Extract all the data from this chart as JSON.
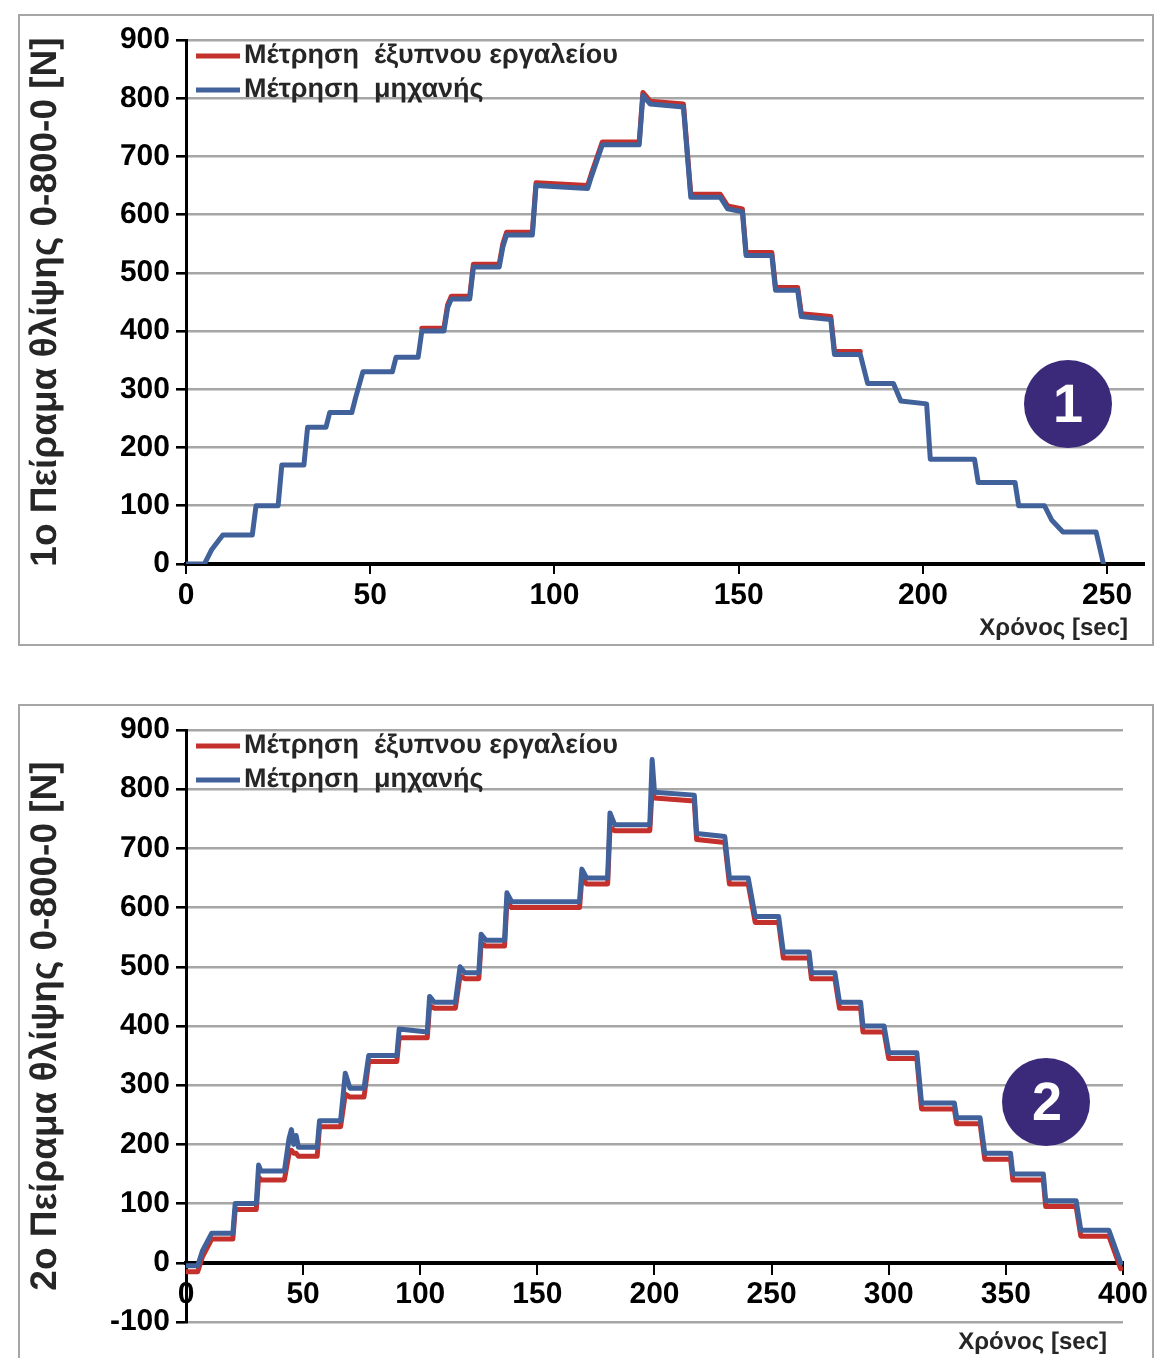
{
  "chart_data": [
    {
      "type": "line",
      "ylabel": "1ο Πείραμα θλίψης 0-800-0 [N]",
      "xlabel": "Χρόνος [sec]",
      "annotations": [
        "1"
      ],
      "xlim": [
        0,
        260
      ],
      "xticks": [
        0,
        50,
        100,
        150,
        200,
        250
      ],
      "ylim": [
        0,
        900
      ],
      "yticks": [
        0,
        100,
        200,
        300,
        400,
        500,
        600,
        700,
        800,
        900
      ],
      "grid": "y",
      "legend": "top left",
      "marker": "none",
      "line_style": "solid",
      "series": [
        {
          "name": "Μέτρηση  έξυπνου εργαλείου",
          "color": "#c4302b",
          "x": [
            64,
            70,
            71,
            72,
            77,
            78,
            85,
            86,
            87,
            94,
            95,
            109,
            110,
            113,
            123,
            124,
            126,
            135,
            137,
            145,
            147,
            151,
            152,
            159,
            160,
            166,
            167,
            175,
            176,
            183
          ],
          "values": [
            405,
            405,
            445,
            460,
            460,
            515,
            515,
            550,
            570,
            570,
            655,
            650,
            670,
            725,
            725,
            810,
            795,
            790,
            635,
            635,
            615,
            610,
            535,
            535,
            475,
            475,
            430,
            425,
            365,
            365
          ]
        },
        {
          "name": "Μέτρηση  μηχανής",
          "color": "#41619b",
          "x": [
            0,
            5,
            7,
            10,
            18,
            19,
            25,
            26,
            32,
            33,
            38,
            39,
            45,
            46,
            48,
            56,
            57,
            63,
            64,
            70,
            71,
            72,
            77,
            78,
            85,
            86,
            87,
            94,
            95,
            109,
            110,
            113,
            123,
            124,
            126,
            135,
            137,
            145,
            147,
            151,
            152,
            159,
            160,
            166,
            167,
            175,
            176,
            183,
            185,
            192,
            194,
            201,
            202,
            214,
            215,
            225,
            226,
            233,
            235,
            238,
            247,
            249
          ],
          "values": [
            0,
            0,
            25,
            50,
            50,
            100,
            100,
            170,
            170,
            235,
            235,
            260,
            260,
            285,
            330,
            330,
            355,
            355,
            400,
            400,
            440,
            455,
            455,
            510,
            510,
            545,
            565,
            565,
            650,
            645,
            665,
            720,
            720,
            805,
            790,
            785,
            630,
            630,
            610,
            605,
            530,
            530,
            470,
            470,
            425,
            420,
            360,
            360,
            310,
            310,
            280,
            275,
            180,
            180,
            140,
            140,
            100,
            100,
            75,
            55,
            55,
            0
          ]
        }
      ]
    },
    {
      "type": "line",
      "ylabel": "2ο Πείραμα θλίψης 0-800-0 [N]",
      "xlabel": "Χρόνος [sec]",
      "annotations": [
        "2"
      ],
      "xlim": [
        0,
        400
      ],
      "xticks": [
        0,
        50,
        100,
        150,
        200,
        250,
        300,
        350,
        400
      ],
      "ylim": [
        -100,
        900
      ],
      "yticks": [
        -100,
        0,
        100,
        200,
        300,
        400,
        500,
        600,
        700,
        800,
        900
      ],
      "grid": "y",
      "legend": "top left",
      "marker": "none",
      "line_style": "solid",
      "series": [
        {
          "name": "Μέτρηση  έξυπνου εργαλείου",
          "color": "#c4302b",
          "x": [
            0,
            5,
            7,
            11,
            20,
            21,
            30,
            31,
            32,
            42,
            44,
            45,
            46,
            47,
            48,
            56,
            57,
            66,
            68,
            70,
            76,
            78,
            90,
            91,
            103,
            104,
            106,
            115,
            117,
            119,
            125,
            126,
            128,
            136,
            137,
            139,
            168,
            169,
            171,
            180,
            181,
            183,
            198,
            199,
            200,
            217,
            218,
            230,
            232,
            240,
            243,
            253,
            255,
            266,
            267,
            277,
            279,
            288,
            289,
            298,
            300,
            312,
            314,
            328,
            329,
            339,
            341,
            352,
            353,
            366,
            367,
            380,
            382,
            394,
            399
          ],
          "values": [
            -15,
            -15,
            10,
            40,
            40,
            90,
            90,
            145,
            140,
            140,
            185,
            190,
            185,
            185,
            180,
            180,
            230,
            230,
            285,
            280,
            280,
            340,
            340,
            380,
            380,
            435,
            430,
            430,
            485,
            480,
            480,
            540,
            535,
            535,
            610,
            600,
            600,
            650,
            640,
            640,
            735,
            730,
            730,
            800,
            785,
            780,
            715,
            710,
            640,
            640,
            575,
            575,
            515,
            515,
            480,
            480,
            430,
            430,
            390,
            390,
            345,
            345,
            260,
            260,
            235,
            235,
            175,
            175,
            140,
            140,
            95,
            95,
            45,
            45,
            -10
          ]
        },
        {
          "name": "Μέτρηση  μηχανής",
          "color": "#41619b",
          "x": [
            0,
            5,
            7,
            11,
            20,
            21,
            30,
            31,
            32,
            42,
            44,
            45,
            46,
            47,
            48,
            56,
            57,
            66,
            68,
            70,
            76,
            78,
            90,
            91,
            103,
            104,
            106,
            115,
            117,
            119,
            125,
            126,
            128,
            136,
            137,
            139,
            168,
            169,
            171,
            180,
            181,
            183,
            198,
            199,
            200,
            217,
            218,
            230,
            232,
            240,
            243,
            253,
            255,
            266,
            267,
            277,
            279,
            288,
            289,
            298,
            300,
            312,
            314,
            328,
            329,
            339,
            341,
            352,
            353,
            366,
            367,
            380,
            382,
            394,
            399
          ],
          "values": [
            -5,
            -5,
            20,
            50,
            50,
            100,
            100,
            165,
            155,
            155,
            210,
            225,
            200,
            215,
            195,
            195,
            240,
            240,
            320,
            295,
            295,
            350,
            350,
            395,
            390,
            450,
            440,
            440,
            500,
            490,
            490,
            555,
            545,
            545,
            625,
            610,
            610,
            665,
            650,
            650,
            760,
            740,
            740,
            850,
            795,
            790,
            725,
            720,
            650,
            650,
            585,
            585,
            525,
            525,
            490,
            490,
            440,
            440,
            400,
            400,
            355,
            355,
            270,
            270,
            245,
            245,
            185,
            185,
            150,
            150,
            105,
            105,
            55,
            55,
            0
          ]
        }
      ]
    }
  ]
}
